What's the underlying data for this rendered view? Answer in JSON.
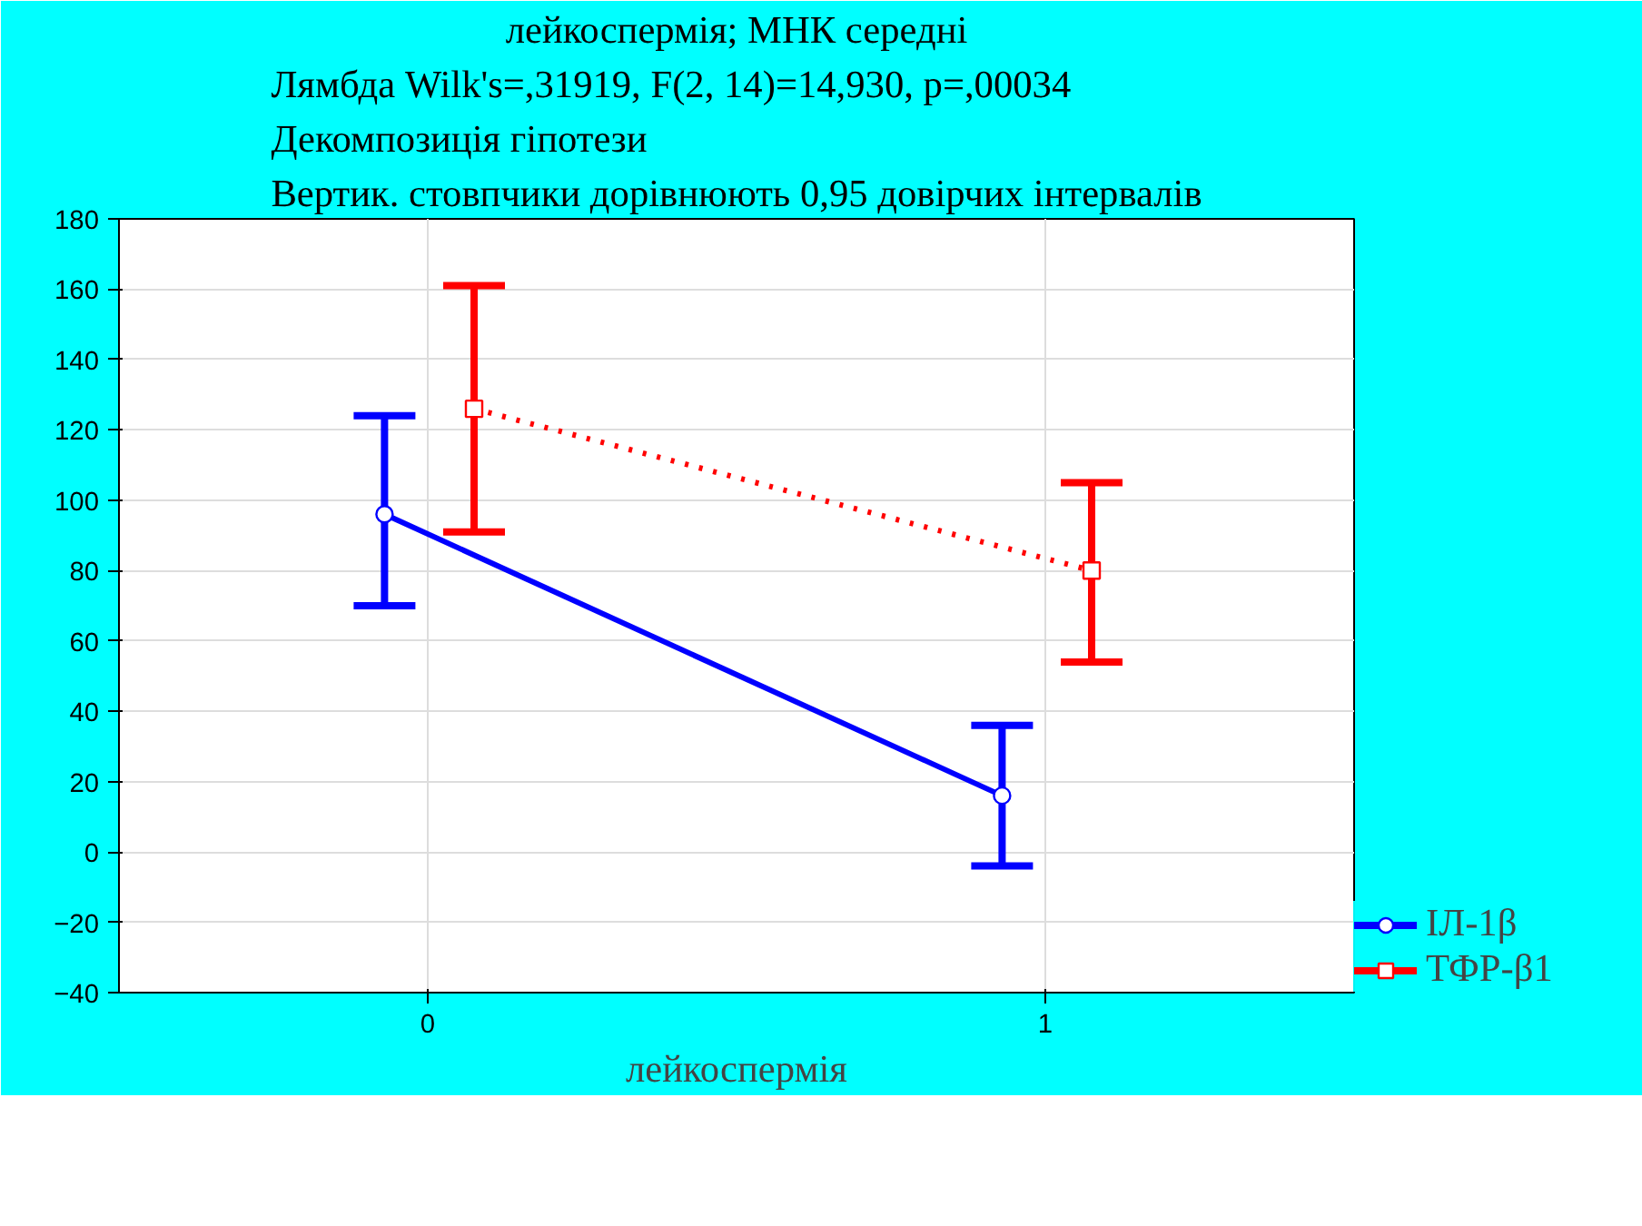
{
  "chart_data": {
    "type": "line",
    "title": "лейкоспермія; МНК середні",
    "subtitle": "Лямбда Wilk's=,31919, F(2, 14)=14,930, p=,00034\nДекомпозиція гіпотези\nВертик. стовпчики дорівнюють 0,95 довірчих інтервалів",
    "xlabel": "лейкоспермія",
    "xlim": [
      -0.5,
      1.5
    ],
    "xticks": [
      0,
      1
    ],
    "ylim": [
      -40,
      180
    ],
    "yticks": [
      -40,
      -20,
      0,
      20,
      40,
      60,
      80,
      100,
      120,
      140,
      160,
      180
    ],
    "grid": true,
    "legend": "bottom right",
    "series": [
      {
        "name": "ІЛ-1β",
        "color": "#0000ff",
        "x": [
          -0.07,
          0.93
        ],
        "values": [
          96,
          16
        ],
        "errors": [
          [
            70,
            124
          ],
          [
            -4,
            36
          ]
        ],
        "marker": "circle",
        "line_style": "solid"
      },
      {
        "name": "ТФР-β1",
        "color": "#ff0000",
        "x": [
          0.075,
          1.075
        ],
        "values": [
          126,
          80
        ],
        "errors": [
          [
            91,
            161
          ],
          [
            54,
            105
          ]
        ],
        "marker": "square",
        "line_style": "dotted"
      }
    ]
  }
}
